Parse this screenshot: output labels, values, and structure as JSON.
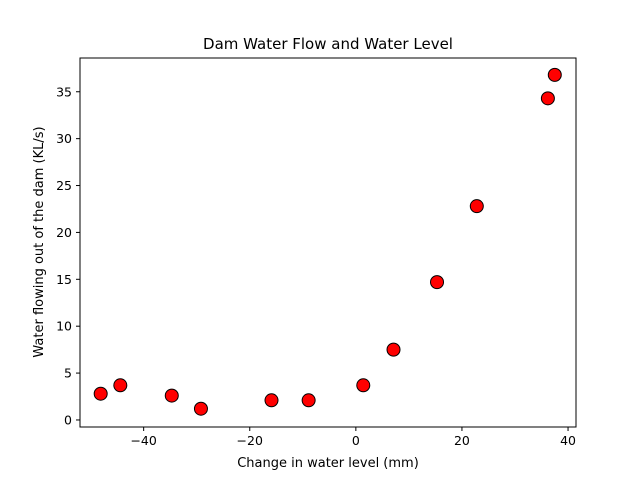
{
  "chart_data": {
    "type": "scatter",
    "title": "Dam Water Flow and Water Level",
    "xlabel": "Change in water level (mm)",
    "ylabel": "Water flowing out of the dam (KL/s)",
    "xlim": [
      -52,
      41.5
    ],
    "ylim": [
      -0.75,
      38.6
    ],
    "xticks": [
      -40,
      -20,
      0,
      20,
      40
    ],
    "yticks": [
      0,
      5,
      10,
      15,
      20,
      25,
      30,
      35
    ],
    "xtick_labels": [
      "−40",
      "−20",
      "0",
      "20",
      "40"
    ],
    "ytick_labels": [
      "0",
      "5",
      "10",
      "15",
      "20",
      "25",
      "30",
      "35"
    ],
    "grid": false,
    "marker_color": "#ff0000",
    "marker_edge_color": "#000000",
    "points": [
      {
        "x": -48.1,
        "y": 2.8
      },
      {
        "x": -44.4,
        "y": 3.7
      },
      {
        "x": -34.7,
        "y": 2.6
      },
      {
        "x": -29.2,
        "y": 1.2
      },
      {
        "x": -15.9,
        "y": 2.1
      },
      {
        "x": -8.9,
        "y": 2.1
      },
      {
        "x": 1.4,
        "y": 3.7
      },
      {
        "x": 7.1,
        "y": 7.5
      },
      {
        "x": 15.3,
        "y": 14.7
      },
      {
        "x": 22.8,
        "y": 22.8
      },
      {
        "x": 36.2,
        "y": 34.3
      },
      {
        "x": 37.5,
        "y": 36.8
      }
    ]
  }
}
